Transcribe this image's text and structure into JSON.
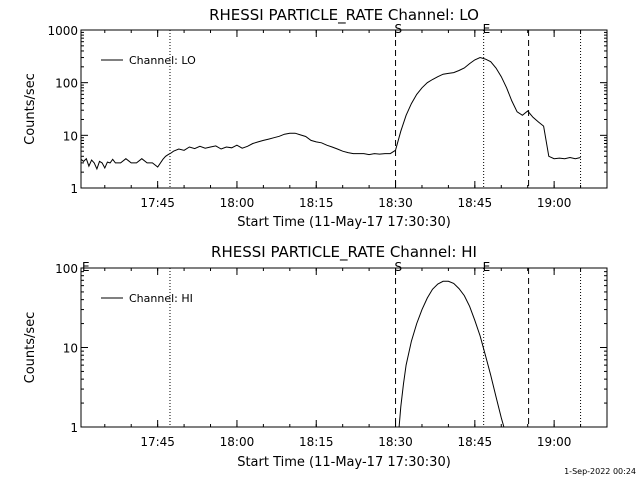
{
  "chart_data": [
    {
      "type": "line",
      "title": "RHESSI PARTICLE_RATE Channel: LO",
      "xlabel": "Start Time (11-May-17 17:30:30)",
      "ylabel": "Counts/sec",
      "yscale": "log",
      "ylim": [
        1,
        1000
      ],
      "xlim": [
        "17:30:30",
        "19:10:00"
      ],
      "x_ticks": [
        "17:45",
        "18:00",
        "18:15",
        "18:30",
        "18:45",
        "19:00"
      ],
      "y_ticks": [
        "1",
        "10",
        "100",
        "1000"
      ],
      "legend_position": "top-left",
      "series": [
        {
          "name": "Channel: LO",
          "x": [
            "17:30:30",
            "17:31:00",
            "17:31:30",
            "17:32:00",
            "17:32:30",
            "17:33:00",
            "17:33:30",
            "17:34:00",
            "17:34:30",
            "17:35:00",
            "17:35:30",
            "17:36:00",
            "17:36:30",
            "17:37:00",
            "17:38:00",
            "17:39:00",
            "17:40:00",
            "17:41:00",
            "17:42:00",
            "17:43:00",
            "17:44:00",
            "17:45:00",
            "17:46:00",
            "17:46:30",
            "17:47:00",
            "17:47:30",
            "17:48:00",
            "17:49:00",
            "17:50:00",
            "17:51:00",
            "17:52:00",
            "17:53:00",
            "17:54:00",
            "17:55:00",
            "17:56:00",
            "17:57:00",
            "17:58:00",
            "17:59:00",
            "18:00:00",
            "18:01:00",
            "18:02:00",
            "18:03:00",
            "18:04:00",
            "18:05:00",
            "18:06:00",
            "18:07:00",
            "18:08:00",
            "18:09:00",
            "18:10:00",
            "18:11:00",
            "18:12:00",
            "18:13:00",
            "18:14:00",
            "18:15:00",
            "18:16:00",
            "18:17:00",
            "18:18:00",
            "18:19:00",
            "18:20:00",
            "18:21:00",
            "18:22:00",
            "18:23:00",
            "18:24:00",
            "18:25:00",
            "18:26:00",
            "18:27:00",
            "18:28:00",
            "18:29:00",
            "18:30:00",
            "18:31:00",
            "18:32:00",
            "18:33:00",
            "18:34:00",
            "18:35:00",
            "18:36:00",
            "18:37:00",
            "18:38:00",
            "18:39:00",
            "18:40:00",
            "18:41:00",
            "18:42:00",
            "18:43:00",
            "18:44:00",
            "18:45:00",
            "18:46:00",
            "18:47:00",
            "18:48:00",
            "18:49:00",
            "18:50:00",
            "18:51:00",
            "18:52:00",
            "18:53:00",
            "18:54:00",
            "18:55:00",
            "18:56:00",
            "18:57:00",
            "18:58:00",
            "18:59:00",
            "19:00:00",
            "19:01:00",
            "19:02:00",
            "19:03:00",
            "19:04:00",
            "19:05:00"
          ],
          "y": [
            3.5,
            3.2,
            3.6,
            2.6,
            3.4,
            3.0,
            2.3,
            3.2,
            3.0,
            2.4,
            3.1,
            3.0,
            3.5,
            3.0,
            3.0,
            3.6,
            3.0,
            3.0,
            3.6,
            3.0,
            3.0,
            2.5,
            3.5,
            4.0,
            4.3,
            4.6,
            5.0,
            5.5,
            5.2,
            6.0,
            5.6,
            6.2,
            5.7,
            6.0,
            6.3,
            5.5,
            6.0,
            5.8,
            6.5,
            5.7,
            6.2,
            7.0,
            7.5,
            8.0,
            8.5,
            9.0,
            9.6,
            10.5,
            11.0,
            11.0,
            10.2,
            9.5,
            8.0,
            7.5,
            7.2,
            6.5,
            6.0,
            5.5,
            5.0,
            4.7,
            4.5,
            4.5,
            4.5,
            4.3,
            4.5,
            4.4,
            4.5,
            4.5,
            5.2,
            12.0,
            24.0,
            40.0,
            60.0,
            80.0,
            100.0,
            115.0,
            130.0,
            145.0,
            150.0,
            155.0,
            170.0,
            190.0,
            230.0,
            270.0,
            300.0,
            280.0,
            250.0,
            190.0,
            130.0,
            80.0,
            45.0,
            28.0,
            24.0,
            29.0,
            22.0,
            18.0,
            15.0,
            4.0,
            3.6,
            3.7,
            3.6,
            3.8,
            3.6,
            3.8
          ]
        }
      ],
      "annotations": [
        {
          "label": "S",
          "x": "18:30:00",
          "style": "dashed"
        },
        {
          "label": "E",
          "x": "18:46:40",
          "style": "dotted"
        },
        {
          "label": "",
          "x": "17:47:20",
          "style": "dotted"
        },
        {
          "label": "",
          "x": "18:55:10",
          "style": "dashed"
        },
        {
          "label": "",
          "x": "19:05:00",
          "style": "dotted"
        }
      ]
    },
    {
      "type": "line",
      "title": "RHESSI PARTICLE_RATE Channel: HI",
      "xlabel": "Start Time (11-May-17 17:30:30)",
      "ylabel": "Counts/sec",
      "yscale": "log",
      "ylim": [
        1,
        100
      ],
      "xlim": [
        "17:30:30",
        "19:10:00"
      ],
      "x_ticks": [
        "17:45",
        "18:00",
        "18:15",
        "18:30",
        "18:45",
        "19:00"
      ],
      "y_ticks": [
        "1",
        "10",
        "100"
      ],
      "legend_position": "top-left",
      "series": [
        {
          "name": "Channel: HI",
          "x": [
            "18:30:40",
            "18:31:00",
            "18:31:30",
            "18:32:00",
            "18:33:00",
            "18:34:00",
            "18:35:00",
            "18:36:00",
            "18:37:00",
            "18:38:00",
            "18:39:00",
            "18:40:00",
            "18:41:00",
            "18:42:00",
            "18:43:00",
            "18:44:00",
            "18:45:00",
            "18:46:00",
            "18:47:00",
            "18:48:00",
            "18:49:00",
            "18:50:00",
            "18:50:30"
          ],
          "y": [
            1.0,
            1.8,
            3.5,
            6.0,
            12.0,
            20.0,
            30.0,
            42.0,
            54.0,
            63.0,
            68.0,
            68.0,
            64.0,
            55.0,
            45.0,
            33.0,
            22.0,
            14.0,
            8.0,
            4.5,
            2.4,
            1.3,
            1.0
          ]
        }
      ],
      "annotations": [
        {
          "label": "S",
          "x": "18:30:00",
          "style": "dashed"
        },
        {
          "label": "E",
          "x": "18:46:40",
          "style": "dotted"
        },
        {
          "label": "E",
          "x": "17:30:30",
          "style": "none"
        },
        {
          "label": "",
          "x": "17:47:20",
          "style": "dotted"
        },
        {
          "label": "",
          "x": "18:55:10",
          "style": "dashed"
        },
        {
          "label": "",
          "x": "19:05:00",
          "style": "dotted"
        }
      ]
    }
  ],
  "footer": {
    "timestamp": "1-Sep-2022 00:24"
  },
  "colors": {
    "background": "#ffffff",
    "foreground": "#000000"
  }
}
